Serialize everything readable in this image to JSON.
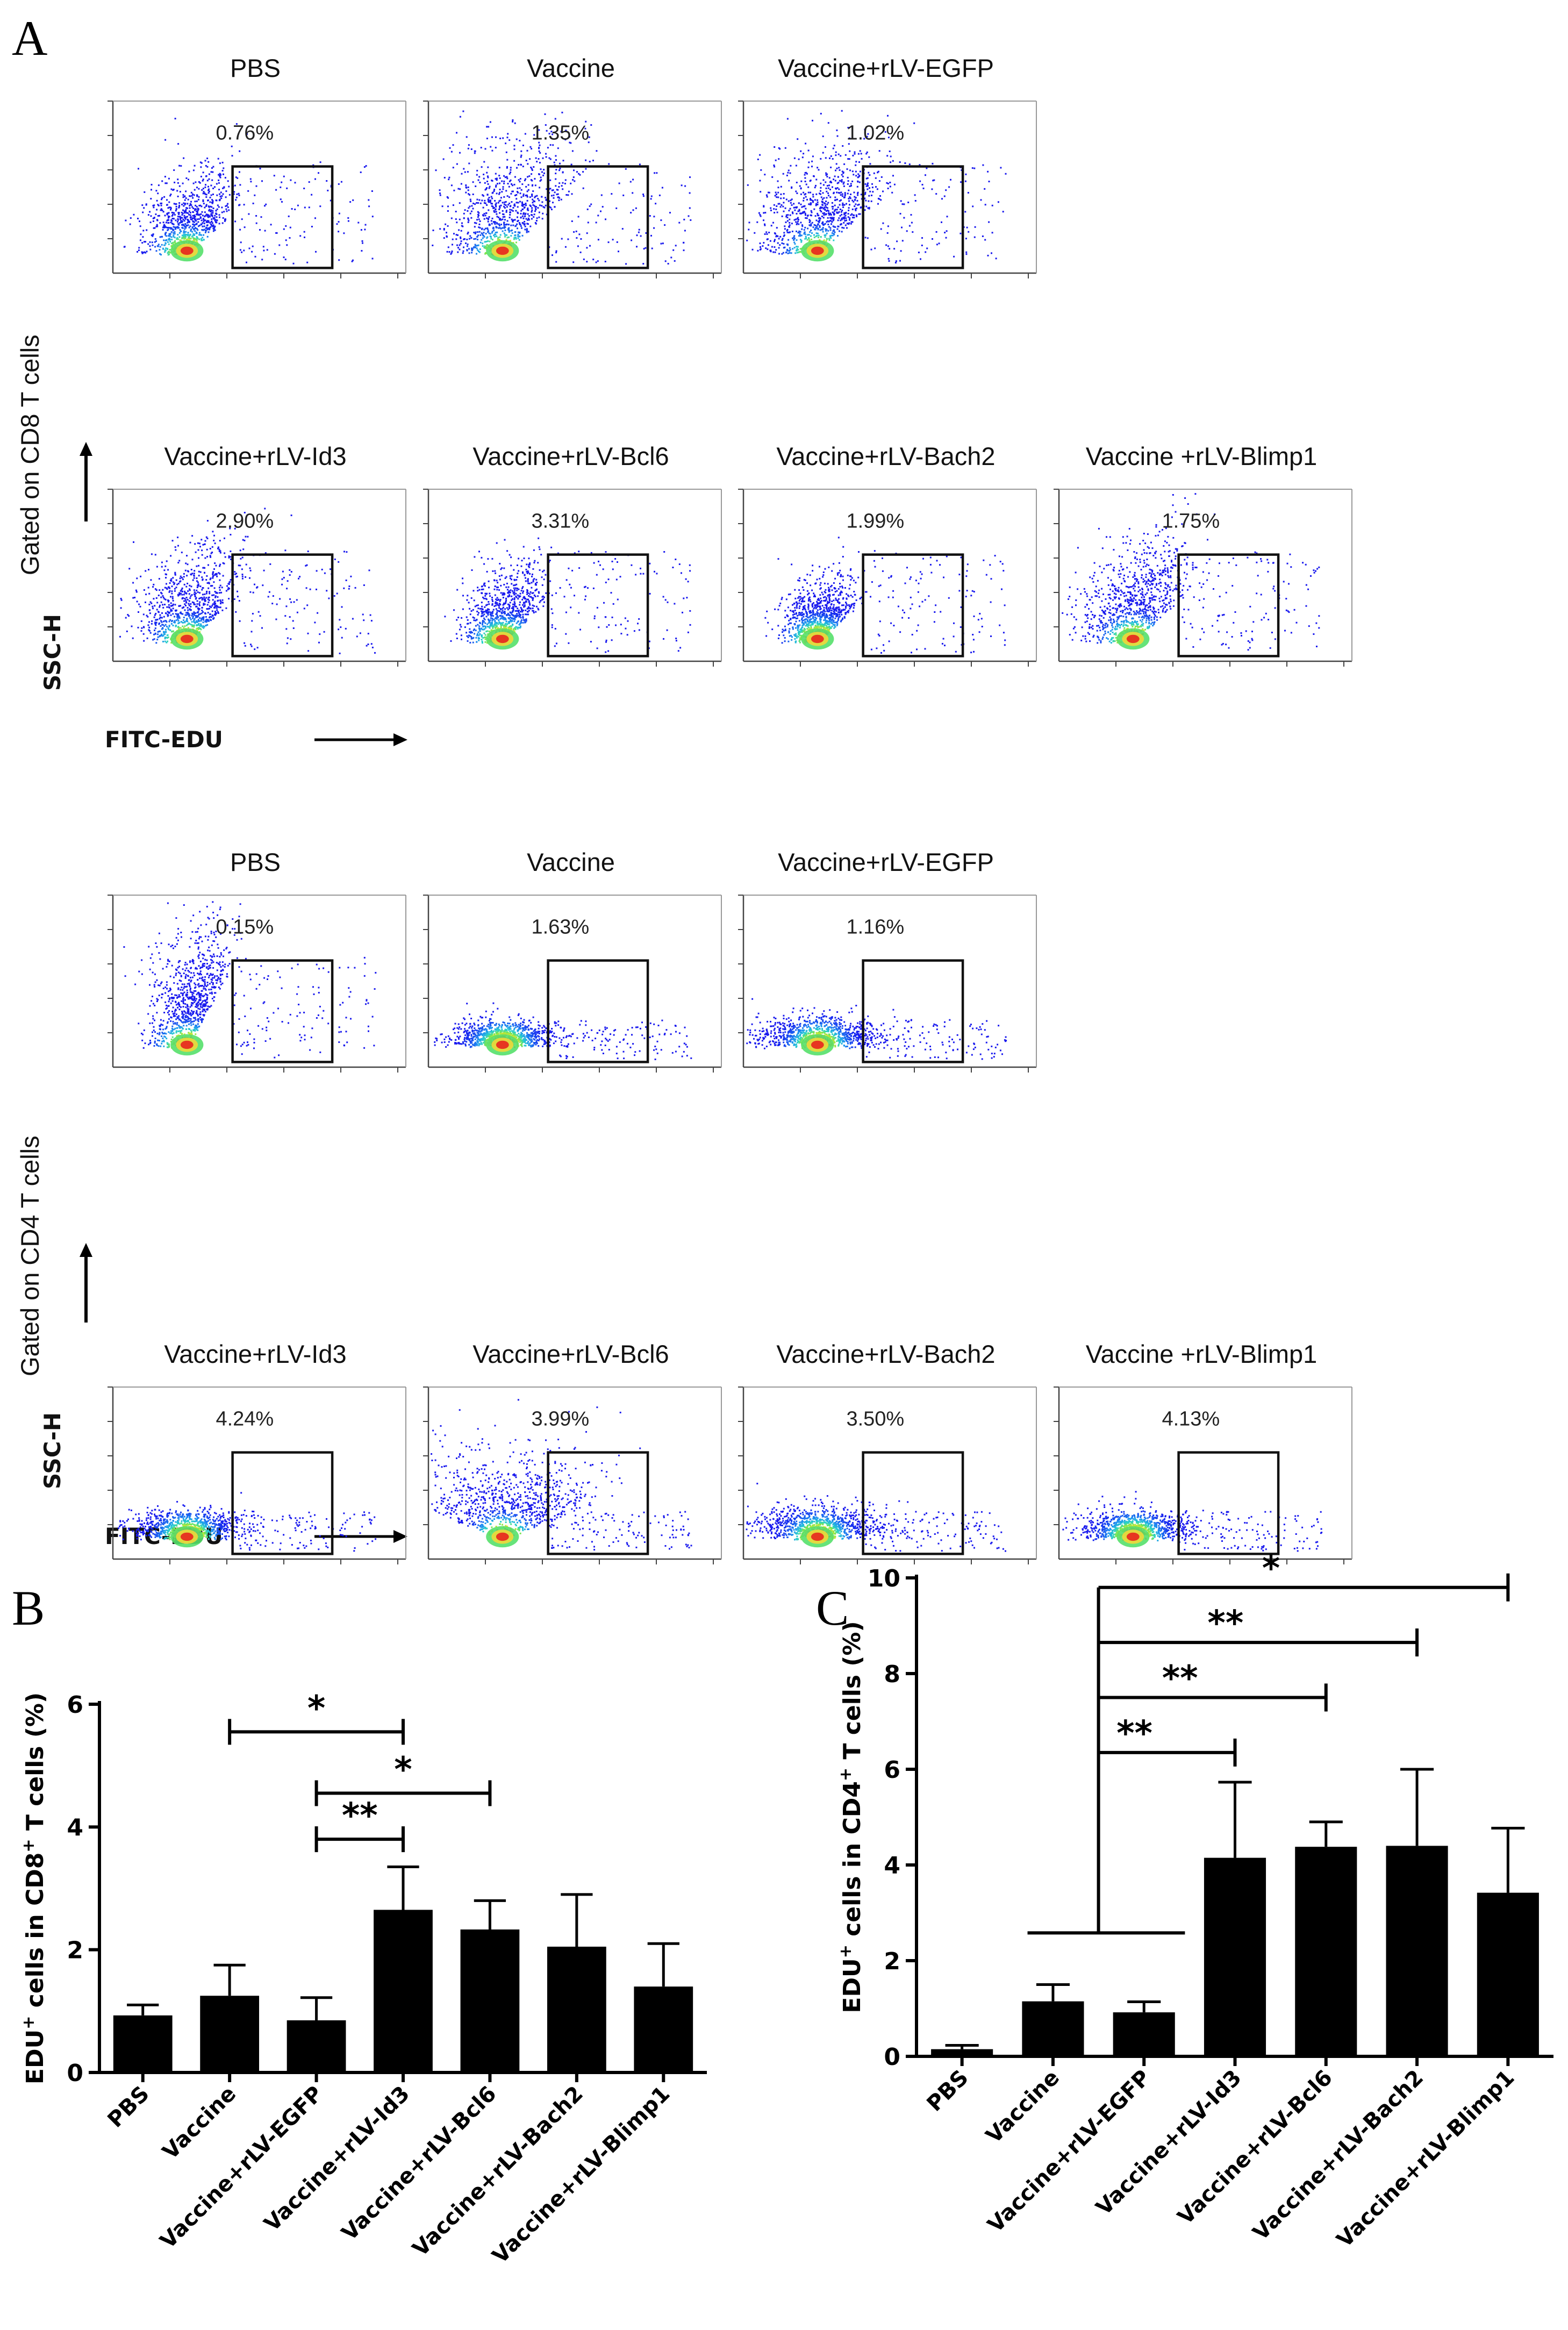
{
  "panel_a": {
    "letter": "A",
    "cd8_label": "Gated on CD8 T cells",
    "cd4_label": "Gated on CD4 T cells",
    "y_axis_label": "SSC-H",
    "x_axis_label": "FITC-EDU",
    "cd8_plots": [
      {
        "title": "PBS",
        "percent": "0.76%",
        "shape": "wedge",
        "spread": 0.9
      },
      {
        "title": "Vaccine",
        "percent": "1.35%",
        "shape": "wedge",
        "spread": 1.3
      },
      {
        "title": "Vaccine+rLV-EGFP",
        "percent": "1.02%",
        "shape": "wedge",
        "spread": 1.2
      },
      {
        "title": "Vaccine+rLV-Id3",
        "percent": "2.90%",
        "shape": "wedge",
        "spread": 1.0
      },
      {
        "title": "Vaccine+rLV-Bcl6",
        "percent": "3.31%",
        "shape": "wedge",
        "spread": 0.8
      },
      {
        "title": "Vaccine+rLV-Bach2",
        "percent": "1.99%",
        "shape": "wedge",
        "spread": 0.7
      },
      {
        "title": "Vaccine +rLV-Blimp1",
        "percent": "1.75%",
        "shape": "wedge",
        "spread": 1.1
      }
    ],
    "cd4_plots": [
      {
        "title": "PBS",
        "percent": "0.15%",
        "shape": "steep",
        "spread": 0.8
      },
      {
        "title": "Vaccine",
        "percent": "1.63%",
        "shape": "flat",
        "spread": 0.7
      },
      {
        "title": "Vaccine+rLV-EGFP",
        "percent": "1.16%",
        "shape": "flat",
        "spread": 0.9
      },
      {
        "title": "Vaccine+rLV-Id3",
        "percent": "4.24%",
        "shape": "flat",
        "spread": 0.8
      },
      {
        "title": "Vaccine+rLV-Bcl6",
        "percent": "3.99%",
        "shape": "broad",
        "spread": 1.1
      },
      {
        "title": "Vaccine+rLV-Bach2",
        "percent": "3.50%",
        "shape": "flat",
        "spread": 1.0
      },
      {
        "title": "Vaccine +rLV-Blimp1",
        "percent": "4.13%",
        "shape": "flat",
        "spread": 0.8
      }
    ]
  },
  "chart_data": [
    {
      "panel": "B",
      "type": "bar",
      "ylabel_prefix": "EDU",
      "ylabel_mid": " cells in CD8",
      "ylabel_suffix": " T cells (%)",
      "sup": "+",
      "ylim": [
        0,
        6
      ],
      "yticks": [
        "0",
        "2",
        "4",
        "6"
      ],
      "categories": [
        "PBS",
        "Vaccine",
        "Vaccine+rLV-EGFP",
        "Vaccine+rLV-Id3",
        "Vaccine+rLV-Bcl6",
        "Vaccine+rLV-Bach2",
        "Vaccine+rLV-Blimp1"
      ],
      "values": [
        0.93,
        1.25,
        0.85,
        2.65,
        2.33,
        2.05,
        1.4
      ],
      "errors": [
        0.17,
        0.5,
        0.37,
        0.7,
        0.47,
        0.85,
        0.7
      ],
      "significance": [
        {
          "from": 1,
          "to": 3,
          "label": "*",
          "y": 5.55
        },
        {
          "from": 2,
          "to": 4,
          "label": "*",
          "y": 4.55
        },
        {
          "from": 2,
          "to": 3,
          "label": "**",
          "y": 3.8
        }
      ]
    },
    {
      "panel": "C",
      "type": "bar",
      "ylabel_prefix": "EDU",
      "ylabel_mid": " cells in CD4",
      "ylabel_suffix": " T cells (%)",
      "sup": "+",
      "ylim": [
        0,
        10
      ],
      "yticks": [
        "0",
        "2",
        "4",
        "6",
        "8",
        "10"
      ],
      "categories": [
        "PBS",
        "Vaccine",
        "Vaccine+rLV-EGFP",
        "Vaccine+rLV-Id3",
        "Vaccine+rLV-Bcl6",
        "Vaccine+rLV-Bach2",
        "Vaccine+rLV-Blimp1"
      ],
      "values": [
        0.15,
        1.15,
        0.92,
        4.15,
        4.38,
        4.4,
        3.42
      ],
      "errors": [
        0.08,
        0.35,
        0.22,
        1.58,
        0.52,
        1.6,
        1.35
      ],
      "group_bracket": {
        "from": 1,
        "to": 2,
        "y": 2.58
      },
      "significance": [
        {
          "to": 6,
          "label": "*",
          "y": 9.8
        },
        {
          "to": 5,
          "label": "**",
          "y": 8.65
        },
        {
          "to": 4,
          "label": "**",
          "y": 7.5
        },
        {
          "to": 3,
          "label": "**",
          "y": 6.35
        }
      ]
    }
  ]
}
